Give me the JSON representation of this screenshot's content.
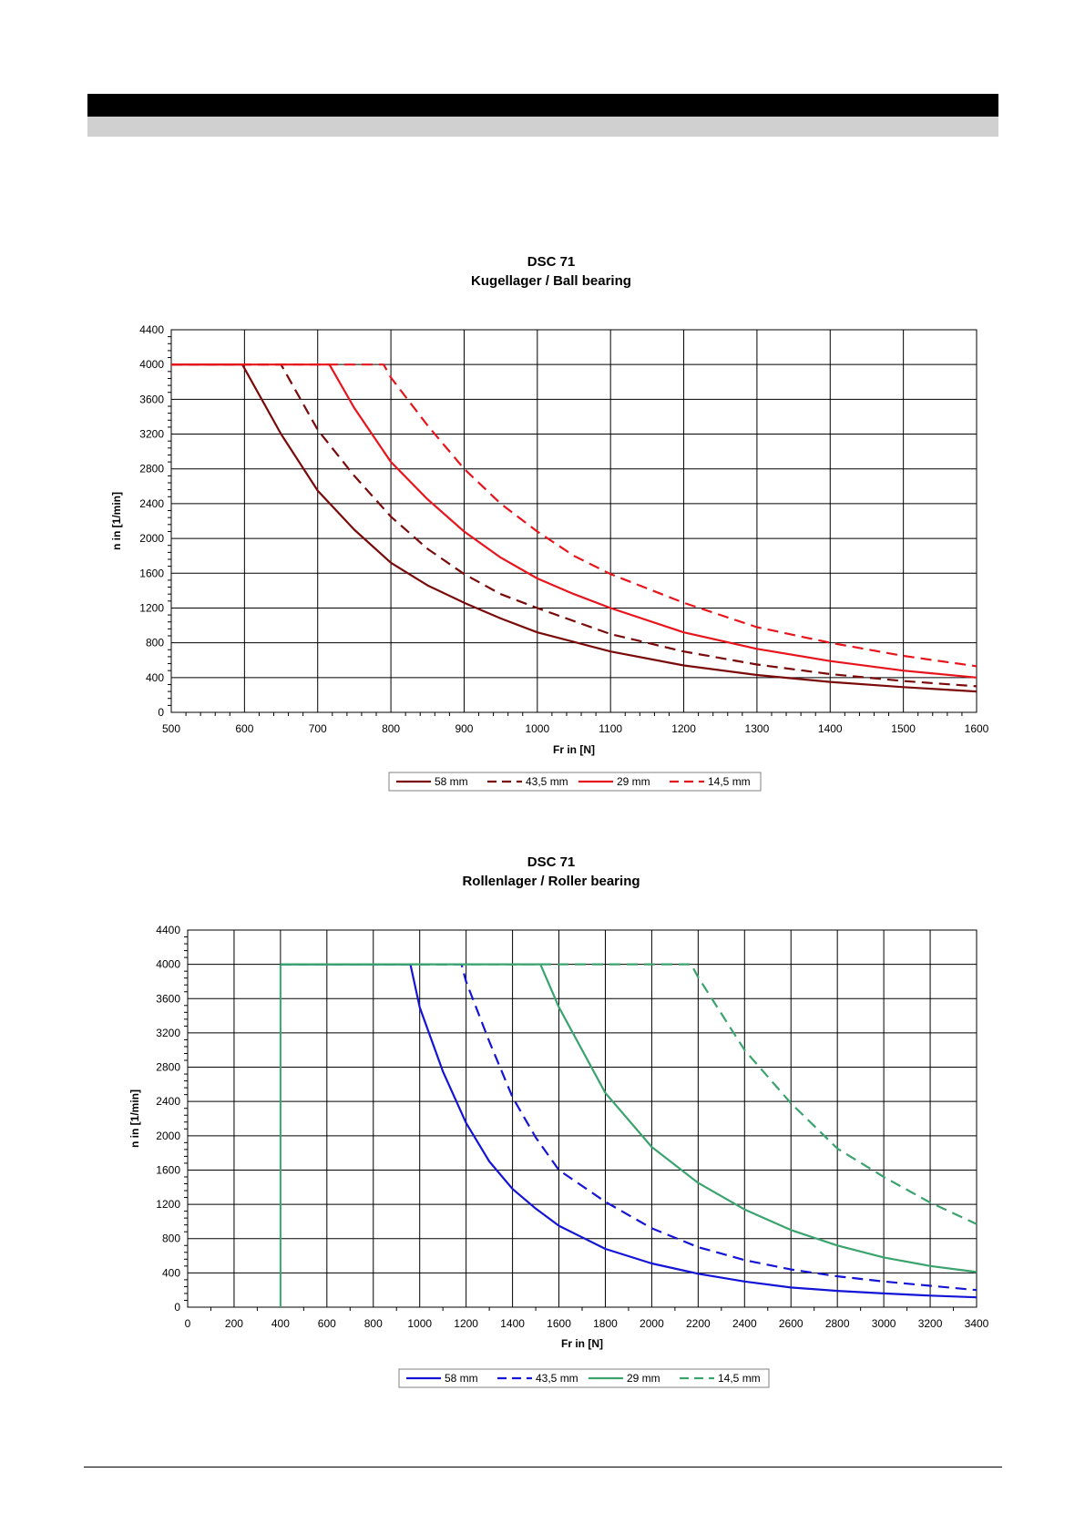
{
  "chart_data": [
    {
      "type": "line",
      "title": "DSC 71",
      "subtitle": "Kugellager / Ball bearing",
      "xlabel": "Fr in [N]",
      "ylabel": "n in [1/min]",
      "xlim": [
        500,
        1600
      ],
      "ylim": [
        0,
        4400
      ],
      "xticks": [
        500,
        600,
        700,
        800,
        900,
        1000,
        1100,
        1200,
        1300,
        1400,
        1500,
        1600
      ],
      "yticks": [
        0,
        400,
        800,
        1200,
        1600,
        2000,
        2400,
        2800,
        3200,
        3600,
        4000,
        4400
      ],
      "grid": true,
      "legend_position": "bottom",
      "series": [
        {
          "name": "58 mm",
          "color": "#7a0a0a",
          "dash": "solid",
          "x": [
            500,
            597,
            650,
            700,
            750,
            800,
            850,
            900,
            950,
            1000,
            1100,
            1200,
            1300,
            1400,
            1500,
            1600
          ],
          "y": [
            4000,
            4000,
            3200,
            2550,
            2100,
            1720,
            1460,
            1260,
            1080,
            920,
            700,
            540,
            430,
            350,
            290,
            240
          ]
        },
        {
          "name": "43,5 mm",
          "color": "#7a0a0a",
          "dash": "dashed",
          "x": [
            500,
            650,
            700,
            750,
            800,
            850,
            900,
            950,
            1000,
            1100,
            1200,
            1300,
            1400,
            1500,
            1600
          ],
          "y": [
            4000,
            4000,
            3250,
            2720,
            2250,
            1880,
            1590,
            1360,
            1200,
            900,
            700,
            550,
            440,
            360,
            300
          ]
        },
        {
          "name": "29 mm",
          "color": "#e8141c",
          "dash": "solid",
          "x": [
            500,
            716,
            750,
            800,
            850,
            900,
            950,
            1000,
            1050,
            1100,
            1200,
            1300,
            1400,
            1500,
            1600
          ],
          "y": [
            4000,
            4000,
            3500,
            2880,
            2450,
            2080,
            1780,
            1540,
            1360,
            1200,
            920,
            730,
            590,
            480,
            400
          ]
        },
        {
          "name": "14,5 mm",
          "color": "#e8141c",
          "dash": "dashed",
          "x": [
            500,
            790,
            800,
            850,
            900,
            950,
            1000,
            1050,
            1100,
            1200,
            1300,
            1400,
            1500,
            1600
          ],
          "y": [
            4000,
            4000,
            3850,
            3300,
            2800,
            2400,
            2080,
            1800,
            1590,
            1260,
            980,
            800,
            650,
            530
          ]
        }
      ]
    },
    {
      "type": "line",
      "title": "DSC 71",
      "subtitle": "Rollenlager / Roller bearing",
      "xlabel": "Fr in [N]",
      "ylabel": "n in [1/min]",
      "xlim": [
        0,
        3400
      ],
      "ylim": [
        0,
        4400
      ],
      "xticks": [
        0,
        200,
        400,
        600,
        800,
        1000,
        1200,
        1400,
        1600,
        1800,
        2000,
        2200,
        2400,
        2600,
        2800,
        3000,
        3200,
        3400
      ],
      "yticks": [
        0,
        400,
        800,
        1200,
        1600,
        2000,
        2400,
        2800,
        3200,
        3600,
        4000,
        4400
      ],
      "grid": true,
      "legend_position": "bottom",
      "series": [
        {
          "name": "58 mm",
          "color": "#1414d6",
          "dash": "solid",
          "x": [
            400,
            960,
            1000,
            1100,
            1200,
            1300,
            1400,
            1500,
            1600,
            1800,
            2000,
            2200,
            2400,
            2600,
            2800,
            3000,
            3200,
            3400
          ],
          "y": [
            4000,
            4000,
            3500,
            2750,
            2150,
            1700,
            1380,
            1150,
            950,
            680,
            510,
            390,
            300,
            230,
            190,
            160,
            135,
            115
          ]
        },
        {
          "name": "43,5 mm",
          "color": "#1414d6",
          "dash": "dashed",
          "x": [
            400,
            1180,
            1200,
            1300,
            1400,
            1500,
            1600,
            1800,
            2000,
            2200,
            2400,
            2600,
            2800,
            3000,
            3200,
            3400
          ],
          "y": [
            4000,
            4000,
            3800,
            3100,
            2450,
            1980,
            1600,
            1230,
            920,
            700,
            550,
            440,
            360,
            300,
            250,
            200
          ]
        },
        {
          "name": "29 mm",
          "color": "#3aa36e",
          "dash": "solid",
          "x": [
            400,
            1520,
            1600,
            1800,
            2000,
            2200,
            2400,
            2600,
            2800,
            3000,
            3200,
            3400
          ],
          "y": [
            4000,
            4000,
            3500,
            2500,
            1870,
            1450,
            1140,
            900,
            720,
            580,
            480,
            410
          ]
        },
        {
          "name": "14,5 mm",
          "color": "#3aa36e",
          "dash": "dashed",
          "x": [
            400,
            2170,
            2200,
            2400,
            2600,
            2800,
            3000,
            3200,
            3400
          ],
          "y": [
            4000,
            4000,
            3850,
            3000,
            2380,
            1850,
            1520,
            1220,
            970
          ]
        }
      ],
      "extra_lines": [
        {
          "color": "#3aa36e",
          "x": [
            400,
            400
          ],
          "y": [
            0,
            4000
          ]
        }
      ]
    }
  ]
}
